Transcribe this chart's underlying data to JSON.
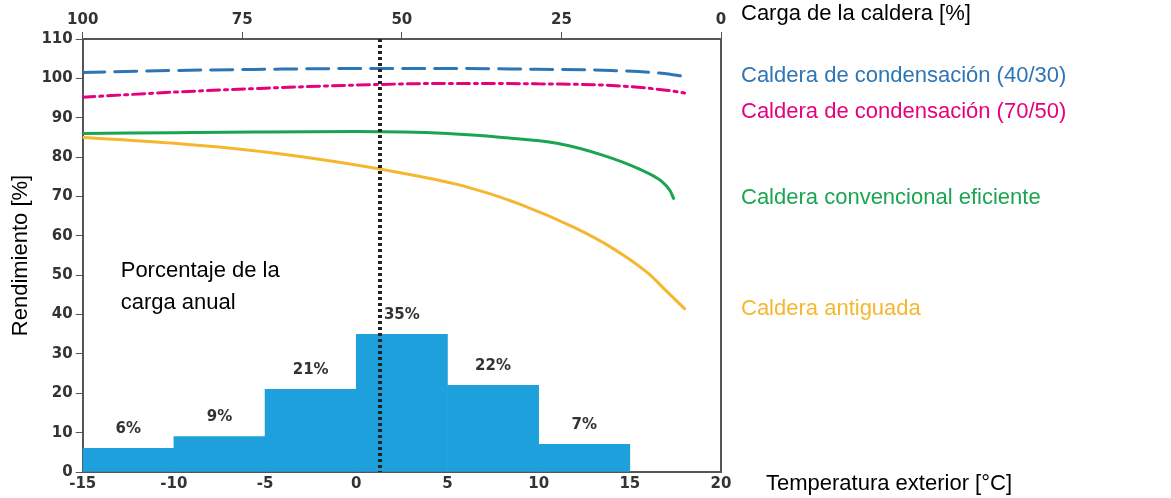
{
  "chart_data": {
    "type": "histogram",
    "xlabel": "Temperatura exterior [°C]",
    "x2label": "Carga de la caldera [%]",
    "ylabel": "Rendimiento [%]",
    "bins": [
      -15,
      -10,
      -5,
      0,
      5,
      10,
      15
    ],
    "values": [
      6,
      9,
      21,
      35,
      22,
      7
    ],
    "color": "#1ea0dc",
    "value_labels": [
      "6%",
      "9%",
      "21%",
      "35%",
      "22%",
      "7%"
    ],
    "xlim": [
      -15,
      20
    ],
    "xticks": [
      -15,
      -10,
      -5,
      0,
      5,
      10,
      15,
      20
    ],
    "x2lim": [
      100,
      0
    ],
    "x2ticks": [
      100,
      75,
      50,
      25,
      0
    ],
    "ylim": [
      0,
      110
    ],
    "yticks": [
      0,
      10,
      20,
      30,
      40,
      50,
      60,
      70,
      80,
      90,
      100,
      110
    ],
    "grid": false,
    "legend": false,
    "series": [
      {
        "type": "line",
        "name": "Caldera de condensación (40/30)",
        "color": "#2e75b6",
        "line_style": "dashed",
        "x": [
          -15,
          -10,
          -5,
          0,
          5,
          10,
          14,
          17,
          18
        ],
        "values": [
          101.5,
          102,
          102.3,
          102.5,
          102.5,
          102.3,
          102,
          101.2,
          100.5
        ]
      },
      {
        "type": "line",
        "name": "Caldera de condensación (70/50)",
        "color": "#e6007e",
        "line_style": "dashdot",
        "x": [
          -15,
          -10,
          -5,
          0,
          5,
          10,
          14,
          17,
          18
        ],
        "values": [
          95.2,
          96.5,
          97.5,
          98.3,
          98.7,
          98.6,
          98.2,
          97,
          96.3
        ]
      },
      {
        "type": "line",
        "name": "Caldera convencional eficiente",
        "color": "#1aa550",
        "x": [
          -15,
          -10,
          -5,
          0,
          5,
          8,
          11,
          13.5,
          15.5,
          16.7,
          17.2,
          17.4
        ],
        "values": [
          86,
          86.2,
          86.4,
          86.5,
          86,
          85,
          83.5,
          80.5,
          77,
          74,
          71.5,
          69.5
        ]
      },
      {
        "type": "line",
        "name": "Caldera antiguada",
        "color": "#f5b730",
        "x": [
          -15,
          -10,
          -5,
          0,
          3,
          6,
          9,
          12,
          14,
          16,
          17,
          18
        ],
        "values": [
          85,
          83.5,
          81.3,
          78,
          75.5,
          72.5,
          68,
          62,
          57,
          50.5,
          46,
          41.5
        ]
      }
    ],
    "ref_lines": [
      {
        "axis": "x",
        "value": 1.3,
        "label": null,
        "color": "#222222",
        "line_style": "dotted"
      }
    ],
    "annotations": [
      "Porcentaje de la carga anual"
    ]
  }
}
